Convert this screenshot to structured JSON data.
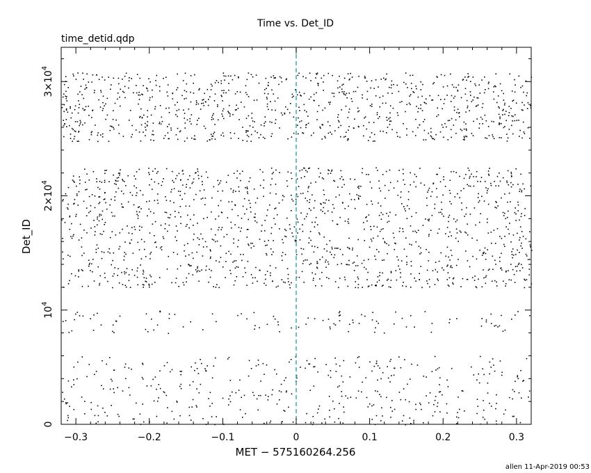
{
  "chart_data": {
    "type": "scatter",
    "title": "Time vs. Det_ID",
    "subtitle": "time_detid.qdp",
    "xlabel": "MET − 575160264.256",
    "ylabel": "Det_ID",
    "xlim": [
      -0.32,
      0.32
    ],
    "ylim": [
      0,
      33000
    ],
    "x_ticks": [
      {
        "value": -0.3,
        "label": "−0.3"
      },
      {
        "value": -0.2,
        "label": "−0.2"
      },
      {
        "value": -0.1,
        "label": "−0.1"
      },
      {
        "value": 0,
        "label": "0"
      },
      {
        "value": 0.1,
        "label": "0.1"
      },
      {
        "value": 0.2,
        "label": "0.2"
      },
      {
        "value": 0.3,
        "label": "0.3"
      }
    ],
    "y_ticks": [
      {
        "value": 0,
        "base": "0",
        "exp": ""
      },
      {
        "value": 10000,
        "base": "10",
        "exp": "4"
      },
      {
        "value": 20000,
        "base": "2×10",
        "exp": "4"
      },
      {
        "value": 30000,
        "base": "3×10",
        "exp": "4"
      }
    ],
    "reference_line": {
      "x": 0,
      "color": "#1a9e9e",
      "style": "dashed"
    },
    "marker_color": "#000000",
    "grid": false,
    "bands": [
      {
        "ymin": 0,
        "ymax": 6000,
        "density": 420
      },
      {
        "ymin": 8000,
        "ymax": 10000,
        "density": 110
      },
      {
        "ymin": 12000,
        "ymax": 14000,
        "density": 300
      },
      {
        "ymin": 14000,
        "ymax": 22500,
        "density": 1100
      },
      {
        "ymin": 24800,
        "ymax": 30800,
        "density": 950
      }
    ]
  },
  "footer": "allen 11-Apr-2019 00:53"
}
